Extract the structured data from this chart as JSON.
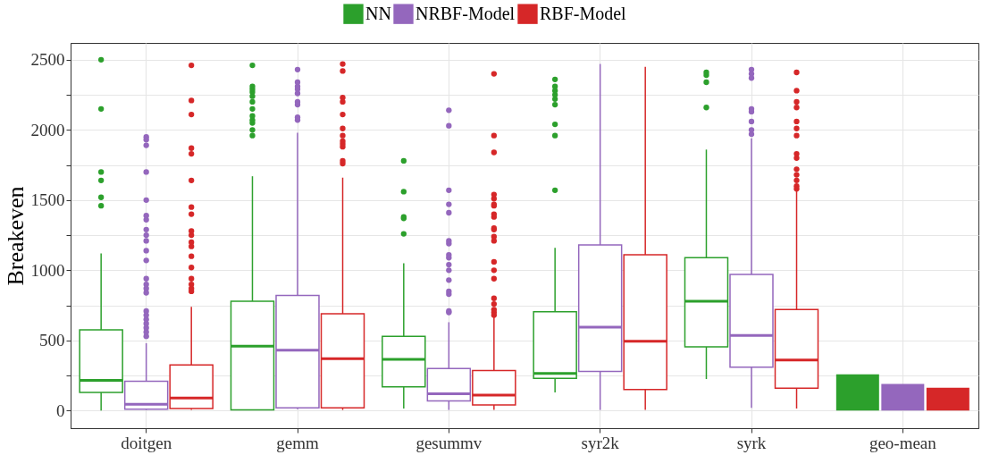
{
  "chart_data": {
    "type": "box",
    "ylabel": "Breakeven",
    "legend": "top",
    "grid": true,
    "categories": [
      "doitgen",
      "gemm",
      "gesummv",
      "syr2k",
      "syrk",
      "geo-mean"
    ],
    "ylim": [
      -125,
      2620
    ],
    "yticks": [
      0,
      {
        "value": 250,
        "label": null
      },
      500,
      {
        "value": 750,
        "label": null
      },
      1000,
      {
        "value": 1250,
        "label": null
      },
      1500,
      {
        "value": 1750,
        "label": null
      },
      2000,
      {
        "value": 2250,
        "label": null
      },
      2500
    ],
    "series": [
      {
        "name": "NN",
        "color": "#2ca02c",
        "boxes": [
          {
            "low": 0,
            "q1": 130,
            "median": 215,
            "q3": 575,
            "high": 1120,
            "outliers": [
              1460,
              1520,
              1640,
              1700,
              2150,
              2500
            ]
          },
          {
            "low": 5,
            "q1": 5,
            "median": 460,
            "q3": 780,
            "high": 1670,
            "outliers": [
              1960,
              2000,
              2050,
              2070,
              2100,
              2150,
              2200,
              2240,
              2270,
              2290,
              2310,
              2460
            ]
          },
          {
            "low": 15,
            "q1": 170,
            "median": 365,
            "q3": 530,
            "high": 1050,
            "outliers": [
              1260,
              1370,
              1380,
              1560,
              1780
            ]
          },
          {
            "low": 130,
            "q1": 230,
            "median": 265,
            "q3": 705,
            "high": 1160,
            "outliers": [
              1570,
              1960,
              2040,
              2180,
              2220,
              2250,
              2280,
              2310,
              2360
            ]
          },
          {
            "low": 225,
            "q1": 455,
            "median": 780,
            "q3": 1090,
            "high": 1860,
            "outliers": [
              2160,
              2340,
              2390,
              2410
            ]
          },
          null
        ]
      },
      {
        "name": "NRBF-Model",
        "color": "#9467bd",
        "boxes": [
          {
            "low": 5,
            "q1": 10,
            "median": 45,
            "q3": 210,
            "high": 480,
            "outliers": [
              530,
              560,
              590,
              620,
              650,
              680,
              710,
              840,
              870,
              900,
              940,
              1070,
              1140,
              1210,
              1250,
              1290,
              1360,
              1390,
              1500,
              1700,
              1890,
              1930,
              1950
            ]
          },
          {
            "low": 10,
            "q1": 20,
            "median": 430,
            "q3": 820,
            "high": 1980,
            "outliers": [
              2070,
              2090,
              2180,
              2200,
              2260,
              2290,
              2310,
              2340,
              2430
            ]
          },
          {
            "low": 5,
            "q1": 70,
            "median": 120,
            "q3": 300,
            "high": 630,
            "outliers": [
              700,
              710,
              830,
              850,
              930,
              1000,
              1040,
              1090,
              1110,
              1190,
              1210,
              1410,
              1470,
              1570,
              2030,
              2140
            ]
          },
          {
            "low": 5,
            "q1": 280,
            "median": 595,
            "q3": 1180,
            "high": 2470
          },
          {
            "low": 20,
            "q1": 310,
            "median": 535,
            "q3": 970,
            "high": 1940,
            "outliers": [
              1970,
              2000,
              2060,
              2130,
              2150,
              2370,
              2400,
              2430
            ]
          },
          null
        ]
      },
      {
        "name": "RBF-Model",
        "color": "#d62728",
        "boxes": [
          {
            "low": 5,
            "q1": 15,
            "median": 90,
            "q3": 325,
            "high": 740,
            "outliers": [
              850,
              870,
              900,
              940,
              1020,
              1100,
              1170,
              1200,
              1250,
              1280,
              1400,
              1450,
              1640,
              1830,
              1870,
              2110,
              2210,
              2460
            ]
          },
          {
            "low": 5,
            "q1": 20,
            "median": 370,
            "q3": 690,
            "high": 1660,
            "outliers": [
              1760,
              1780,
              1880,
              1900,
              1920,
              1960,
              2010,
              2110,
              2200,
              2230,
              2420,
              2470
            ]
          },
          {
            "low": 5,
            "q1": 40,
            "median": 110,
            "q3": 285,
            "high": 670,
            "outliers": [
              680,
              700,
              720,
              760,
              800,
              940,
              1000,
              1060,
              1210,
              1240,
              1290,
              1300,
              1380,
              1400,
              1460,
              1470,
              1510,
              1540,
              1840,
              1960,
              2400
            ]
          },
          {
            "low": 5,
            "q1": 150,
            "median": 495,
            "q3": 1110,
            "high": 2450
          },
          {
            "low": 15,
            "q1": 160,
            "median": 360,
            "q3": 720,
            "high": 1570,
            "outliers": [
              1580,
              1600,
              1640,
              1680,
              1720,
              1800,
              1830,
              1960,
              2010,
              2060,
              2160,
              2200,
              2280,
              2410
            ]
          },
          null
        ]
      },
      {
        "color": "#2ca02c",
        "type": "bar",
        "values": [
          null,
          null,
          null,
          null,
          null,
          258
        ]
      },
      {
        "color": "#9467bd",
        "type": "bar",
        "values": [
          null,
          null,
          null,
          null,
          null,
          190
        ]
      },
      {
        "color": "#d62728",
        "type": "bar",
        "values": [
          null,
          null,
          null,
          null,
          null,
          163
        ]
      }
    ]
  }
}
